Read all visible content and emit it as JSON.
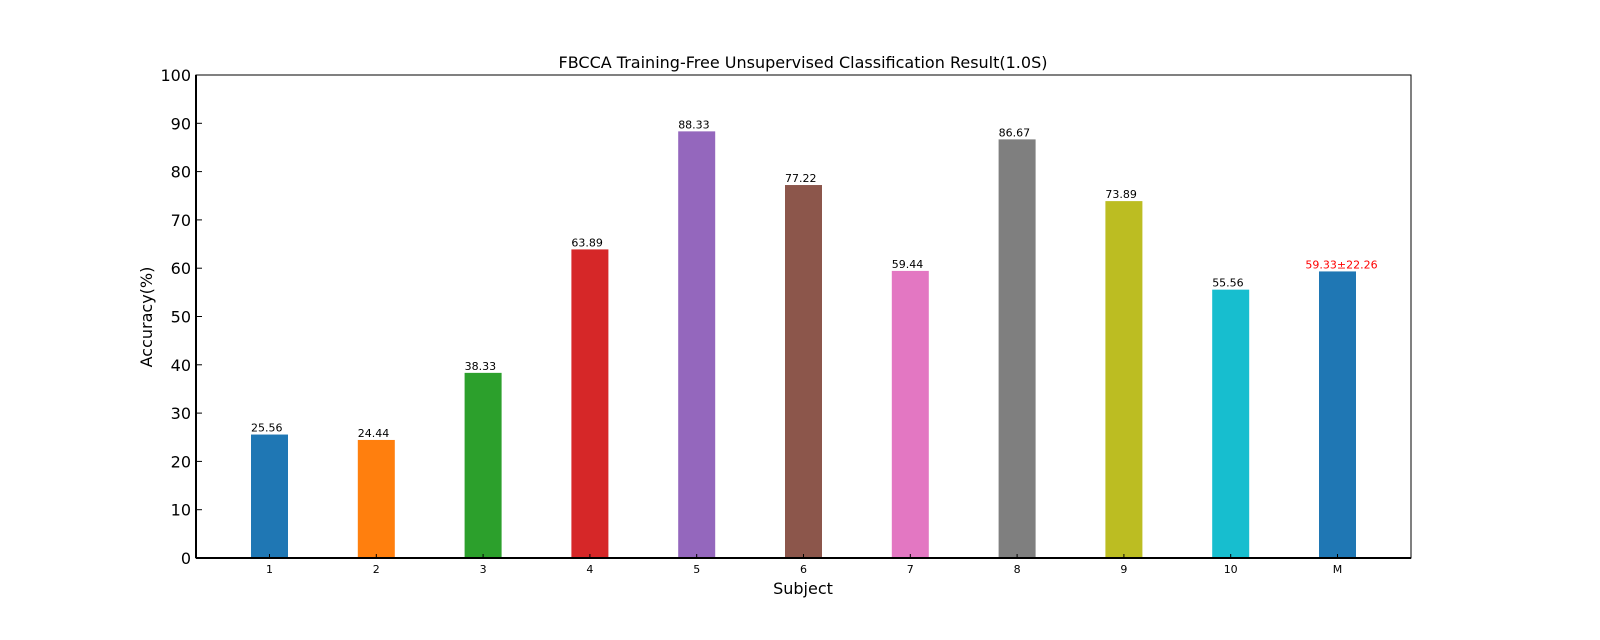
{
  "chart_data": {
    "type": "bar",
    "title": "FBCCA Training-Free Unsupervised Classification Result(1.0S)",
    "xlabel": "Subject",
    "ylabel": "Accuracy(%)",
    "ylim": [
      0,
      100
    ],
    "yticks": [
      0,
      10,
      20,
      30,
      40,
      50,
      60,
      70,
      80,
      90,
      100
    ],
    "grid": false,
    "categories": [
      "1",
      "2",
      "3",
      "4",
      "5",
      "6",
      "7",
      "8",
      "9",
      "10",
      "M"
    ],
    "values": [
      25.56,
      24.44,
      38.33,
      63.89,
      88.33,
      77.22,
      59.44,
      86.67,
      73.89,
      55.56,
      59.33
    ],
    "labels": [
      "25.56",
      "24.44",
      "38.33",
      "63.89",
      "88.33",
      "77.22",
      "59.44",
      "86.67",
      "73.89",
      "55.56",
      "59.33±22.26"
    ],
    "colors": [
      "#1f77b4",
      "#ff7f0e",
      "#2ca02c",
      "#d62728",
      "#9467bd",
      "#8c564b",
      "#e377c2",
      "#7f7f7f",
      "#bcbd22",
      "#17becf",
      "#1f77b4"
    ],
    "label_colors": [
      "#000000",
      "#000000",
      "#000000",
      "#000000",
      "#000000",
      "#000000",
      "#000000",
      "#000000",
      "#000000",
      "#000000",
      "#ff0000"
    ]
  }
}
